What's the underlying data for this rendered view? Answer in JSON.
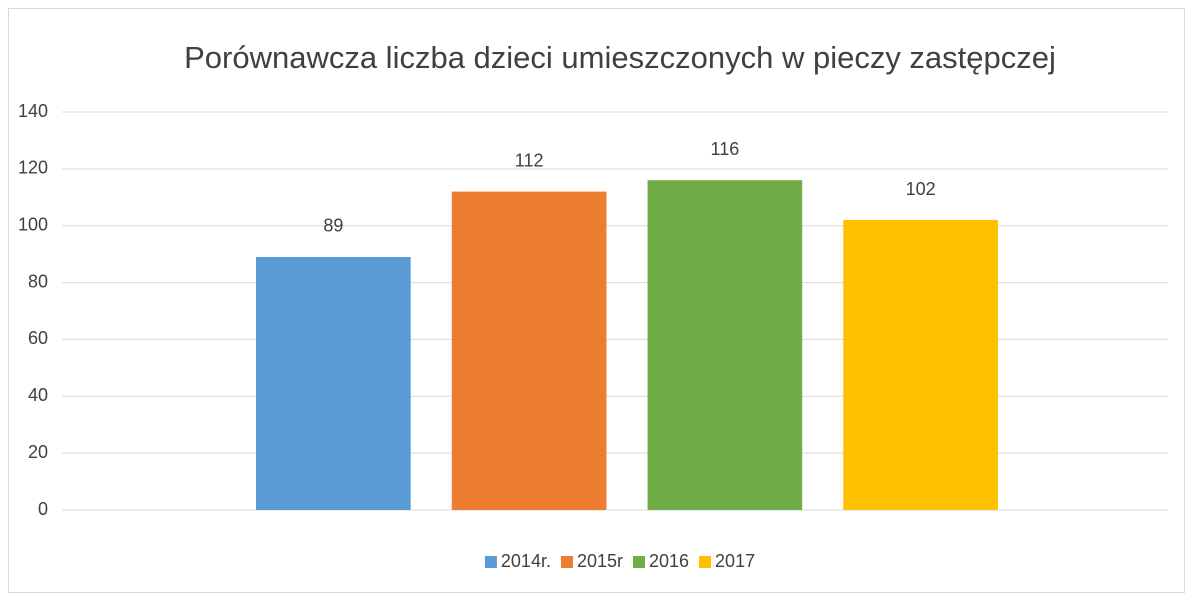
{
  "chart_data": {
    "type": "bar",
    "title": "Porównawcza liczba dzieci umieszczonych w pieczy zastępczej",
    "categories": [
      null
    ],
    "series": [
      {
        "name": "2014r.",
        "color": "#5b9bd5",
        "values": [
          89
        ]
      },
      {
        "name": "2015r",
        "color": "#ed7d31",
        "values": [
          112
        ]
      },
      {
        "name": "2016",
        "color": "#70ad47",
        "values": [
          116
        ]
      },
      {
        "name": "2017",
        "color": "#ffc000",
        "values": [
          102
        ]
      }
    ],
    "ylim": [
      0,
      140
    ],
    "yticks": [
      0,
      20,
      40,
      60,
      80,
      100,
      120,
      140
    ],
    "grid": true,
    "legend": "bottom",
    "data_labels": true
  }
}
